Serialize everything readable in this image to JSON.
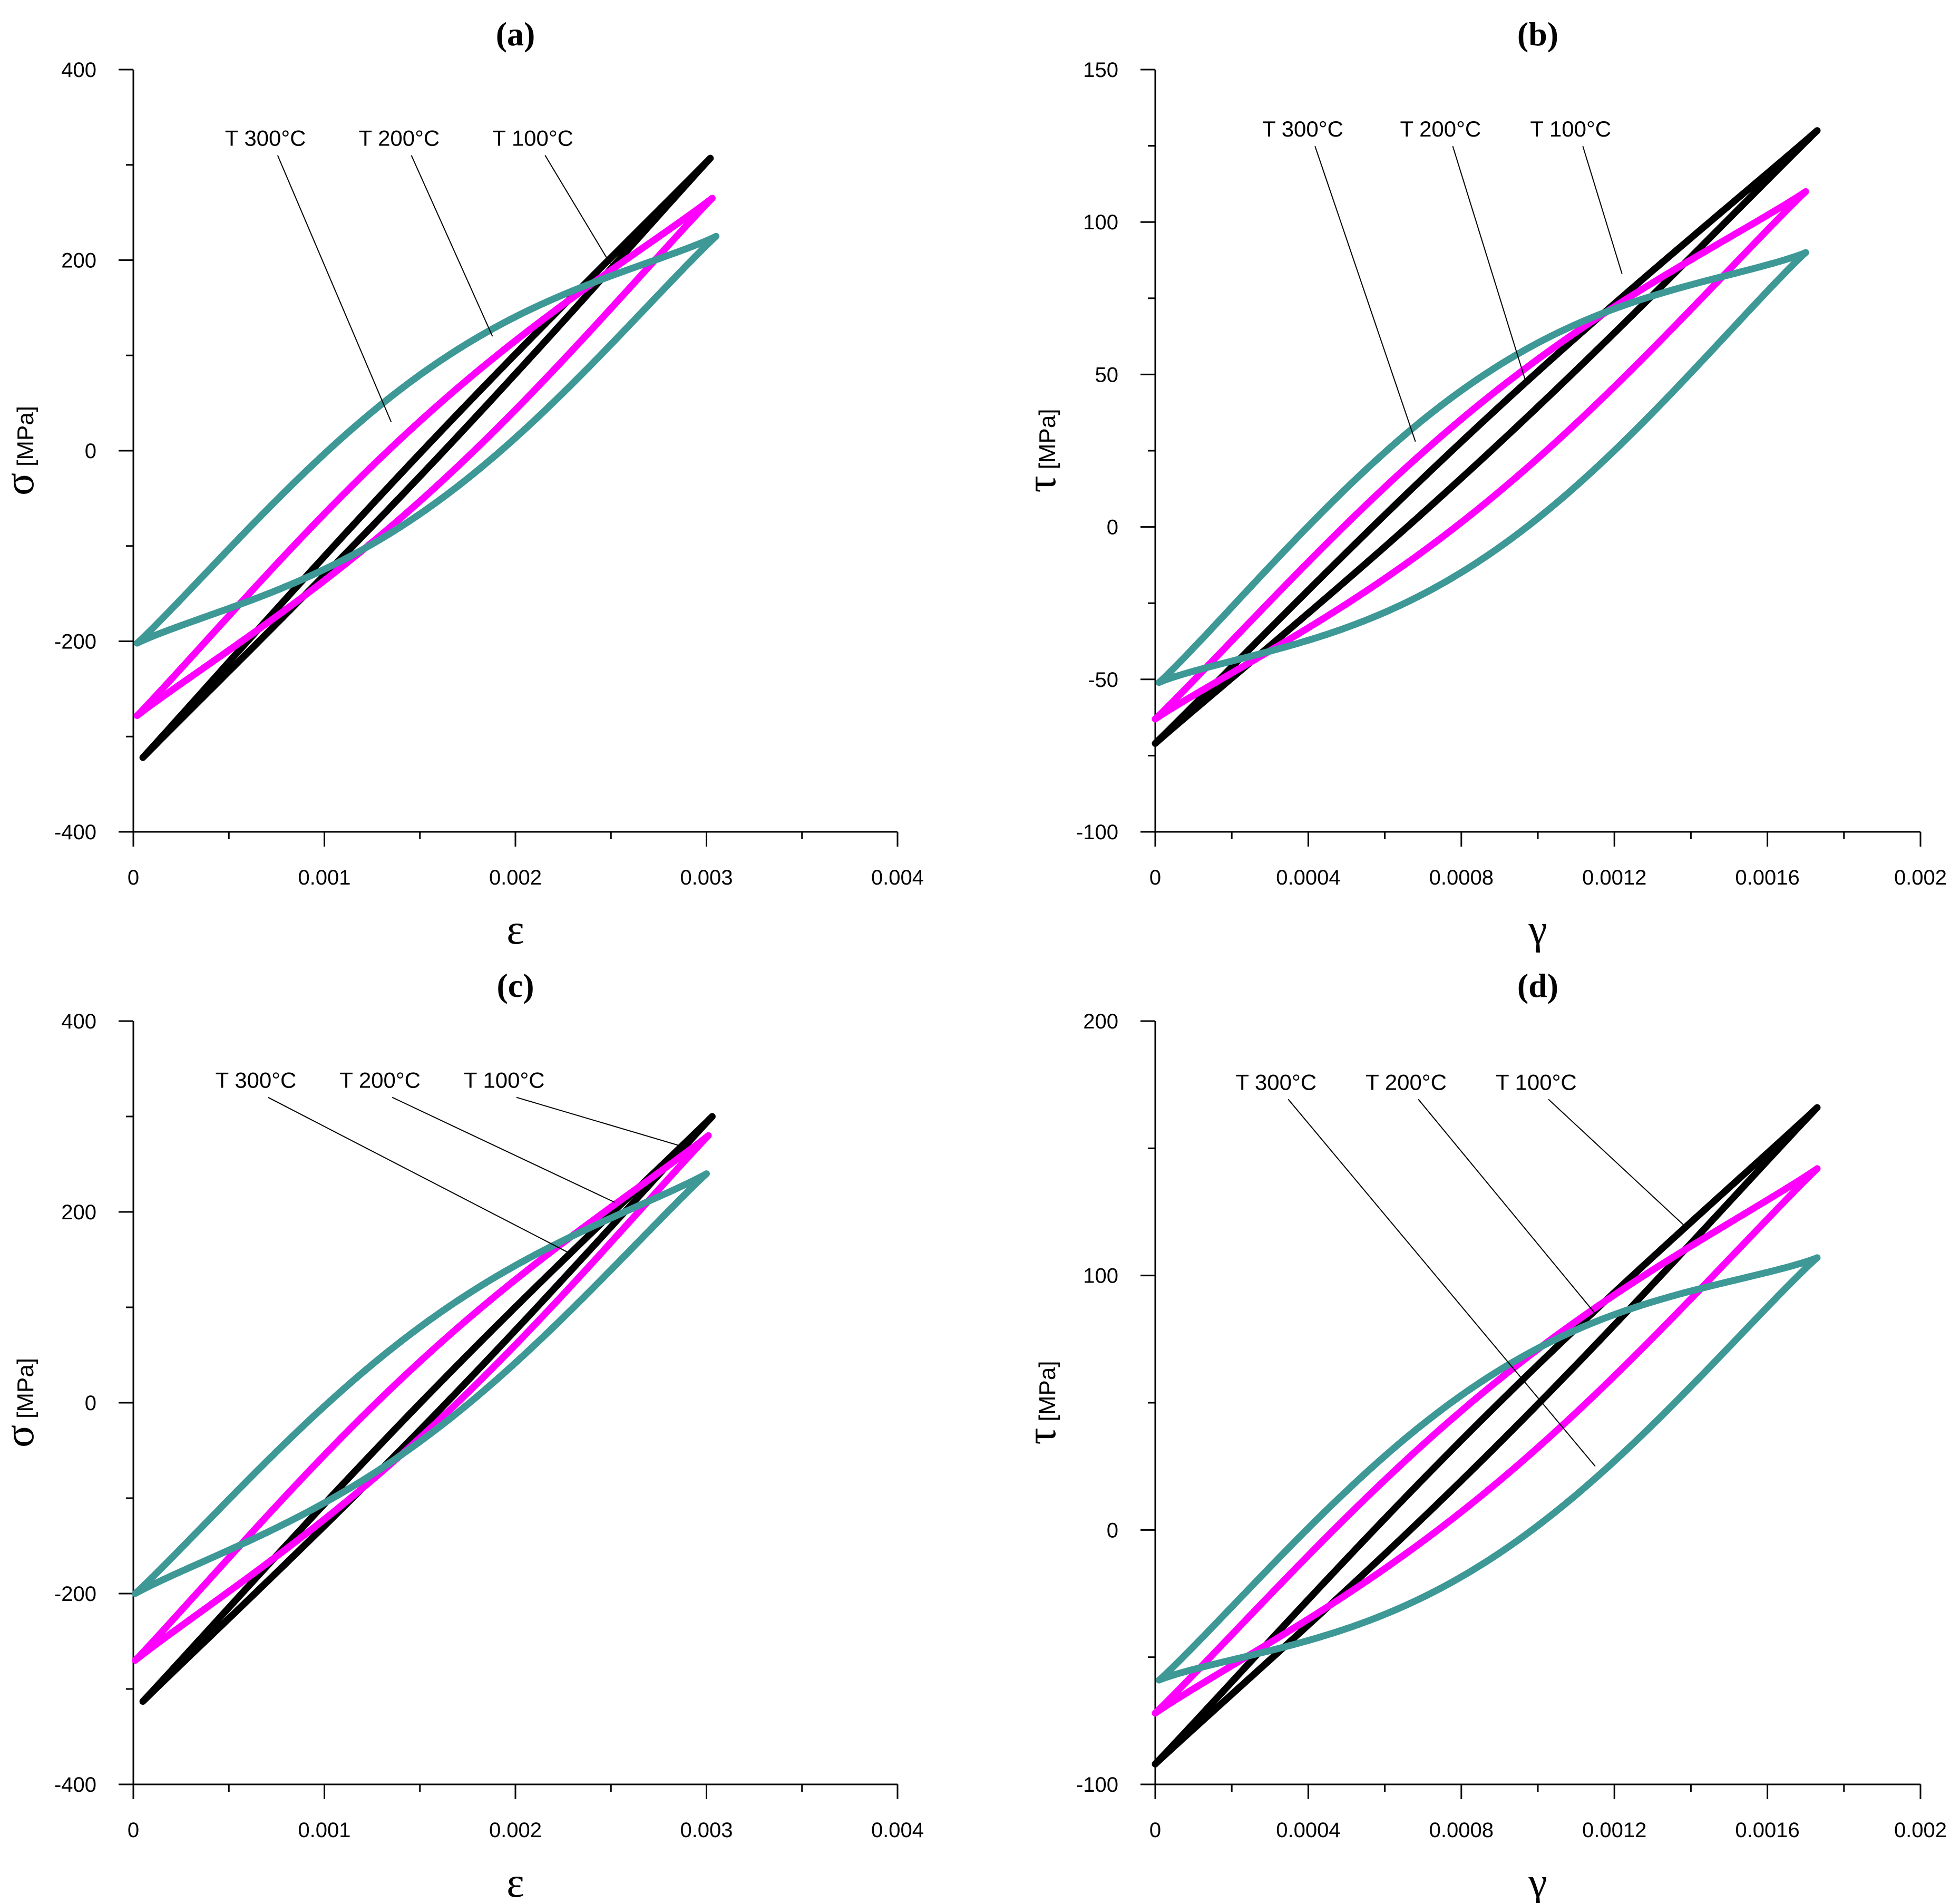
{
  "colors": {
    "T100": "#000000",
    "T200": "#ff00ff",
    "T300": "#3d9896"
  },
  "annotation_labels": [
    "T 300°C",
    "T 200°C",
    "T 100°C"
  ],
  "chart_data": [
    {
      "type": "line",
      "title": "(a)",
      "xlabel": "ε",
      "ylabel": "σ",
      "yunit": "[MPa]",
      "xlim": [
        0,
        0.004
      ],
      "ylim": [
        -400,
        400
      ],
      "xticks": [
        0,
        0.001,
        0.002,
        0.003,
        0.004
      ],
      "xtick_labels": [
        "0",
        "0.001",
        "0.002",
        "0.003",
        "0.004"
      ],
      "yticks": [
        -400,
        -200,
        0,
        200,
        400
      ],
      "ytick_labels": [
        "-400",
        "-200",
        "0",
        "200",
        "400"
      ],
      "series": [
        {
          "name": "T 100°C",
          "color": "#000000",
          "min": [
            5e-05,
            -322
          ],
          "max": [
            0.00302,
            307
          ],
          "bulge": 12
        },
        {
          "name": "T 200°C",
          "color": "#ff00ff",
          "min": [
            2e-05,
            -278
          ],
          "max": [
            0.00303,
            265
          ],
          "bulge": 42
        },
        {
          "name": "T 300°C",
          "color": "#3d9896",
          "min": [
            2e-05,
            -202
          ],
          "max": [
            0.00305,
            225
          ],
          "bulge": 73
        }
      ],
      "annotations": [
        {
          "label": "T 300°C",
          "text_at": [
            0.0007,
            320
          ],
          "point": [
            0.00135,
            30
          ]
        },
        {
          "label": "T 200°C",
          "text_at": [
            0.0014,
            320
          ],
          "point": [
            0.00188,
            120
          ]
        },
        {
          "label": "T 100°C",
          "text_at": [
            0.0021,
            320
          ],
          "point": [
            0.0025,
            195
          ]
        }
      ]
    },
    {
      "type": "line",
      "title": "(b)",
      "xlabel": "γ",
      "ylabel": "τ",
      "yunit": "[MPa]",
      "xlim": [
        0,
        0.002
      ],
      "ylim": [
        -100,
        150
      ],
      "xticks": [
        0,
        0.0004,
        0.0008,
        0.0012,
        0.0016,
        0.002
      ],
      "xtick_labels": [
        "0",
        "0.0004",
        "0.0008",
        "0.0012",
        "0.0016",
        "0.002"
      ],
      "yticks": [
        -100,
        -50,
        0,
        50,
        100,
        150
      ],
      "ytick_labels": [
        "-100",
        "-50",
        "0",
        "50",
        "100",
        "150"
      ],
      "series": [
        {
          "name": "T 100°C",
          "color": "#000000",
          "min": [
            0.0,
            -71
          ],
          "max": [
            0.00173,
            130
          ],
          "bulge": 6
        },
        {
          "name": "T 200°C",
          "color": "#ff00ff",
          "min": [
            0.0,
            -63
          ],
          "max": [
            0.0017,
            110
          ],
          "bulge": 17
        },
        {
          "name": "T 300°C",
          "color": "#3d9896",
          "min": [
            1e-05,
            -51
          ],
          "max": [
            0.0017,
            90
          ],
          "bulge": 30
        }
      ],
      "annotations": [
        {
          "label": "T 300°C",
          "text_at": [
            0.00039,
            128
          ],
          "point": [
            0.00068,
            28
          ]
        },
        {
          "label": "T 200°C",
          "text_at": [
            0.00075,
            128
          ],
          "point": [
            0.00097,
            47
          ]
        },
        {
          "label": "T 100°C",
          "text_at": [
            0.00109,
            128
          ],
          "point": [
            0.00122,
            83
          ]
        }
      ]
    },
    {
      "type": "line",
      "title": "(c)",
      "xlabel": "ε",
      "ylabel": "σ",
      "yunit": "[MPa]",
      "xlim": [
        0,
        0.004
      ],
      "ylim": [
        -400,
        400
      ],
      "xticks": [
        0,
        0.001,
        0.002,
        0.003,
        0.004
      ],
      "xtick_labels": [
        "0",
        "0.001",
        "0.002",
        "0.003",
        "0.004"
      ],
      "yticks": [
        -400,
        -200,
        0,
        200,
        400
      ],
      "ytick_labels": [
        "-400",
        "-200",
        "0",
        "200",
        "400"
      ],
      "series": [
        {
          "name": "T 100°C",
          "color": "#000000",
          "min": [
            5e-05,
            -313
          ],
          "max": [
            0.00303,
            300
          ],
          "bulge": 14
        },
        {
          "name": "T 200°C",
          "color": "#ff00ff",
          "min": [
            1e-05,
            -270
          ],
          "max": [
            0.00301,
            280
          ],
          "bulge": 40
        },
        {
          "name": "T 300°C",
          "color": "#3d9896",
          "min": [
            1e-05,
            -200
          ],
          "max": [
            0.003,
            240
          ],
          "bulge": 60
        }
      ],
      "annotations": [
        {
          "label": "T 300°C",
          "text_at": [
            0.00065,
            330
          ],
          "point": [
            0.0023,
            155
          ]
        },
        {
          "label": "T 200°C",
          "text_at": [
            0.0013,
            330
          ],
          "point": [
            0.00252,
            210
          ]
        },
        {
          "label": "T 100°C",
          "text_at": [
            0.00195,
            330
          ],
          "point": [
            0.00285,
            270
          ]
        }
      ]
    },
    {
      "type": "line",
      "title": "(d)",
      "xlabel": "γ",
      "ylabel": "τ",
      "yunit": "[MPa]",
      "xlim": [
        0,
        0.002
      ],
      "ylim": [
        -100,
        200
      ],
      "xticks": [
        0,
        0.0004,
        0.0008,
        0.0012,
        0.0016,
        0.002
      ],
      "xtick_labels": [
        "0",
        "0.0004",
        "0.0008",
        "0.0012",
        "0.0016",
        "0.002"
      ],
      "yticks": [
        -100,
        0,
        100,
        200
      ],
      "ytick_labels": [
        "-100",
        "0",
        "100",
        "200"
      ],
      "series": [
        {
          "name": "T 100°C",
          "color": "#000000",
          "min": [
            0.0,
            -92
          ],
          "max": [
            0.00173,
            166
          ],
          "bulge": 8
        },
        {
          "name": "T 200°C",
          "color": "#ff00ff",
          "min": [
            0.0,
            -72
          ],
          "max": [
            0.00173,
            142
          ],
          "bulge": 20
        },
        {
          "name": "T 300°C",
          "color": "#3d9896",
          "min": [
            1e-05,
            -59
          ],
          "max": [
            0.00173,
            107
          ],
          "bulge": 36
        }
      ],
      "annotations": [
        {
          "label": "T 300°C",
          "text_at": [
            0.00032,
            173
          ],
          "point": [
            0.00115,
            25
          ]
        },
        {
          "label": "T 200°C",
          "text_at": [
            0.00066,
            173
          ],
          "point": [
            0.00115,
            85
          ]
        },
        {
          "label": "T 100°C",
          "text_at": [
            0.001,
            173
          ],
          "point": [
            0.00138,
            120
          ]
        }
      ]
    }
  ]
}
